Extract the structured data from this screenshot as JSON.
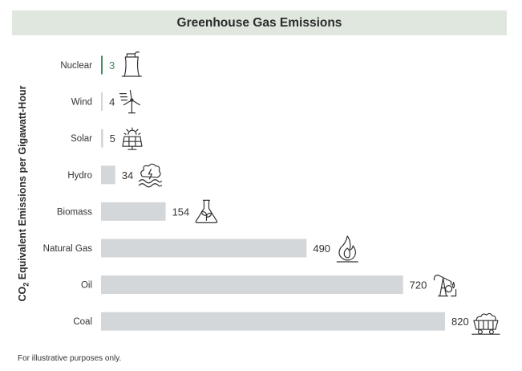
{
  "colors": {
    "bar": "#d4d7da",
    "accent": "#4a8a5e",
    "title_bg": "#dfe7df",
    "text": "#333333",
    "icon": "#333333"
  },
  "chart_data": {
    "type": "bar",
    "orientation": "horizontal",
    "title": "Greenhouse Gas Emissions",
    "ylabel_parts": {
      "prefix": "CO",
      "sub": "2",
      "suffix": " Equivalent Emissions per Gigawatt-Hour"
    },
    "xlabel": "",
    "categories": [
      "Nuclear",
      "Wind",
      "Solar",
      "Hydro",
      "Biomass",
      "Natural Gas",
      "Oil",
      "Coal"
    ],
    "values": [
      3,
      4,
      5,
      34,
      154,
      490,
      720,
      820
    ],
    "icons": [
      "nuclear-plant-icon",
      "wind-turbine-icon",
      "solar-panel-icon",
      "hydro-wave-icon",
      "biomass-flask-icon",
      "natural-gas-flame-icon",
      "oil-pump-icon",
      "coal-cart-icon"
    ],
    "highlight": "Nuclear",
    "xlim": [
      0,
      820
    ],
    "grid": false,
    "legend": "none"
  },
  "footnote": "For illustrative purposes only."
}
